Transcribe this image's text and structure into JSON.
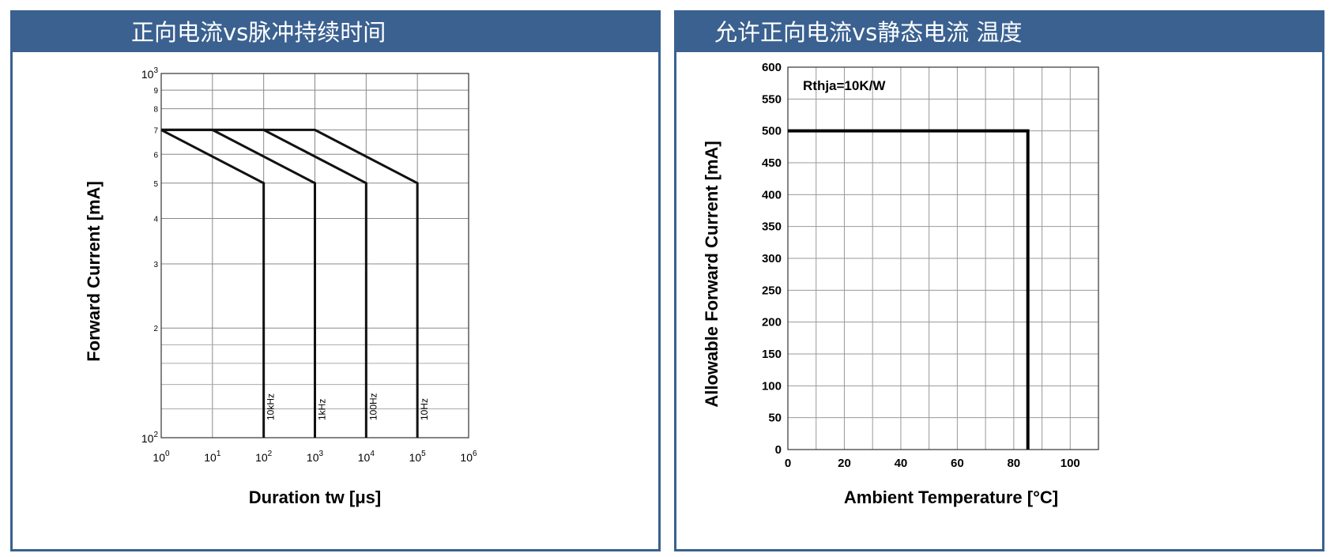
{
  "panels": [
    {
      "title": "正向电流vs脉冲持续时间"
    },
    {
      "title": "允许正向电流vs静态电流 温度"
    }
  ],
  "chart_data": [
    {
      "type": "line",
      "x_scale": "log",
      "y_scale": "log",
      "xlabel": "Duration tw [μs]",
      "ylabel": "Forward Current [mA]",
      "xlim": [
        1,
        1000000
      ],
      "ylim": [
        100,
        1000
      ],
      "x_ticks": [
        {
          "base": "10",
          "exp": "0"
        },
        {
          "base": "10",
          "exp": "1"
        },
        {
          "base": "10",
          "exp": "2"
        },
        {
          "base": "10",
          "exp": "3"
        },
        {
          "base": "10",
          "exp": "4"
        },
        {
          "base": "10",
          "exp": "5"
        },
        {
          "base": "10",
          "exp": "6"
        }
      ],
      "y_ticks_major": [
        {
          "value": 100,
          "base": "10",
          "exp": "2"
        },
        {
          "value": 1000,
          "base": "10",
          "exp": "3"
        }
      ],
      "y_ticks_minor": [
        {
          "value": 200,
          "label": "2"
        },
        {
          "value": 300,
          "label": "3"
        },
        {
          "value": 400,
          "label": "4"
        },
        {
          "value": 500,
          "label": "5"
        },
        {
          "value": 600,
          "label": "6"
        },
        {
          "value": 700,
          "label": "7"
        },
        {
          "value": 800,
          "label": "8"
        },
        {
          "value": 900,
          "label": "9"
        }
      ],
      "grid": true,
      "series": [
        {
          "name": "10kHz",
          "x": [
            1,
            1,
            100,
            100
          ],
          "y": [
            700,
            700,
            500,
            100
          ]
        },
        {
          "name": "1kHz",
          "x": [
            1,
            10,
            1000,
            1000
          ],
          "y": [
            700,
            700,
            500,
            100
          ]
        },
        {
          "name": "100Hz",
          "x": [
            1,
            100,
            10000,
            10000
          ],
          "y": [
            700,
            700,
            500,
            100
          ]
        },
        {
          "name": "10Hz",
          "x": [
            1,
            1000,
            100000,
            100000
          ],
          "y": [
            700,
            700,
            500,
            100
          ]
        }
      ]
    },
    {
      "type": "line",
      "xlabel": "Ambient Temperature [°C]",
      "ylabel": "Allowable Forward Current [mA]",
      "xlim": [
        0,
        110
      ],
      "ylim": [
        0,
        600
      ],
      "x_ticks": [
        0,
        20,
        40,
        60,
        80,
        100
      ],
      "y_ticks": [
        0,
        50,
        100,
        150,
        200,
        250,
        300,
        350,
        400,
        450,
        500,
        550,
        600
      ],
      "grid": true,
      "annotation": "Rthja=10K/W",
      "series": [
        {
          "x": [
            0,
            85,
            85
          ],
          "y": [
            500,
            500,
            0
          ]
        }
      ]
    }
  ]
}
